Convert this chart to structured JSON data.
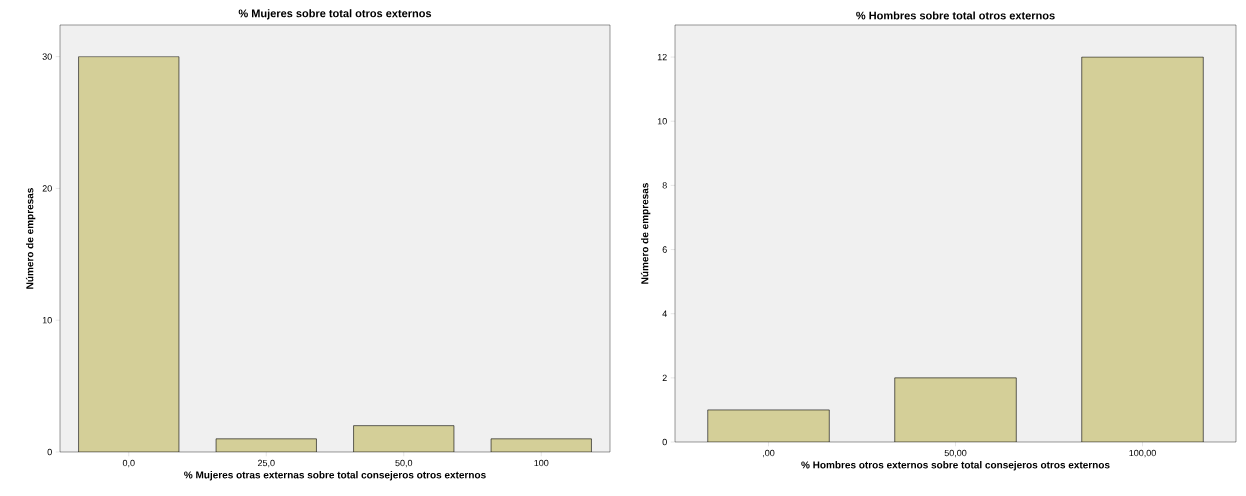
{
  "chart_data": [
    {
      "type": "bar",
      "title": "%  Mujeres sobre total otros externos",
      "xlabel": "%  Mujeres otras externas sobre total consejeros otros externos",
      "ylabel": "Número de empresas",
      "categories": [
        "0,0",
        "25,0",
        "50,0",
        "100"
      ],
      "values": [
        30,
        1,
        2,
        1
      ],
      "color": "#d4cf98",
      "ylim": [
        0,
        32.4
      ],
      "yticks": [
        0,
        10,
        20,
        30
      ]
    },
    {
      "type": "bar",
      "title": "%  Hombres sobre total otros externos",
      "xlabel": "%  Hombres otros externos sobre total consejeros otros externos",
      "ylabel": "Número de empresas",
      "categories": [
        ",00",
        "50,00",
        "100,00"
      ],
      "values": [
        1,
        2,
        12
      ],
      "color": "#d4cf98",
      "ylim": [
        0,
        13
      ],
      "yticks": [
        0,
        2,
        4,
        6,
        8,
        10,
        12
      ]
    }
  ]
}
